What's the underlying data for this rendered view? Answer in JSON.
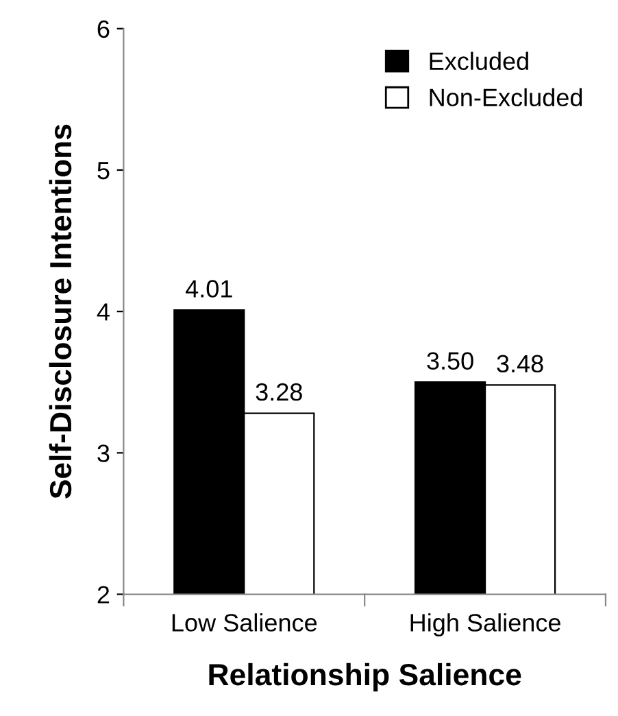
{
  "chart_data": {
    "type": "bar",
    "xlabel": "Relationship Salience",
    "ylabel": "Self-Disclosure Intentions",
    "categories": [
      "Low Salience",
      "High Salience"
    ],
    "series": [
      {
        "name": "Excluded",
        "color": "#000000",
        "values": [
          4.01,
          3.5
        ],
        "value_labels": [
          "4.01",
          "3.50"
        ]
      },
      {
        "name": "Non-Excluded",
        "color": "#ffffff",
        "values": [
          3.28,
          3.48
        ],
        "value_labels": [
          "3.28",
          "3.48"
        ]
      }
    ],
    "ylim": [
      2,
      6
    ],
    "yticks": [
      2,
      3,
      4,
      5,
      6
    ],
    "grid": false,
    "legend": "top right"
  }
}
